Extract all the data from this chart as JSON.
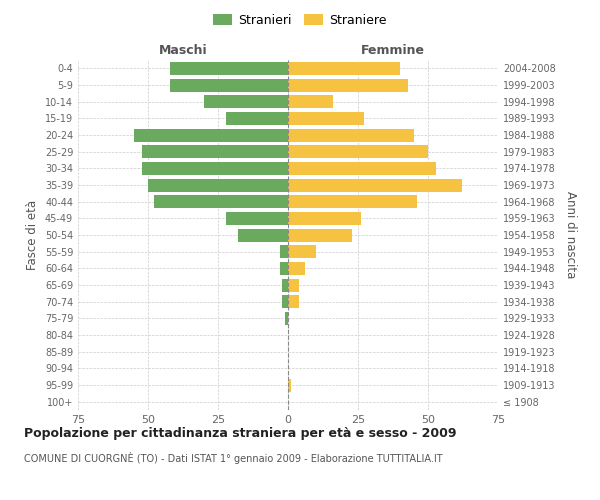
{
  "age_groups": [
    "100+",
    "95-99",
    "90-94",
    "85-89",
    "80-84",
    "75-79",
    "70-74",
    "65-69",
    "60-64",
    "55-59",
    "50-54",
    "45-49",
    "40-44",
    "35-39",
    "30-34",
    "25-29",
    "20-24",
    "15-19",
    "10-14",
    "5-9",
    "0-4"
  ],
  "birth_years": [
    "≤ 1908",
    "1909-1913",
    "1914-1918",
    "1919-1923",
    "1924-1928",
    "1929-1933",
    "1934-1938",
    "1939-1943",
    "1944-1948",
    "1949-1953",
    "1954-1958",
    "1959-1963",
    "1964-1968",
    "1969-1973",
    "1974-1978",
    "1979-1983",
    "1984-1988",
    "1989-1993",
    "1994-1998",
    "1999-2003",
    "2004-2008"
  ],
  "males": [
    0,
    0,
    0,
    0,
    0,
    1,
    2,
    2,
    3,
    3,
    18,
    22,
    48,
    50,
    52,
    52,
    55,
    22,
    30,
    42,
    42
  ],
  "females": [
    0,
    1,
    0,
    0,
    0,
    0,
    4,
    4,
    6,
    10,
    23,
    26,
    46,
    62,
    53,
    50,
    45,
    27,
    16,
    43,
    40
  ],
  "male_color": "#6aaa5f",
  "female_color": "#f5c242",
  "title": "Popolazione per cittadinanza straniera per età e sesso - 2009",
  "subtitle": "COMUNE DI CUORGNÈ (TO) - Dati ISTAT 1° gennaio 2009 - Elaborazione TUTTITALIA.IT",
  "xlabel_left": "Maschi",
  "xlabel_right": "Femmine",
  "ylabel_left": "Fasce di età",
  "ylabel_right": "Anni di nascita",
  "legend_male": "Stranieri",
  "legend_female": "Straniere",
  "xlim": 75,
  "background_color": "#ffffff",
  "grid_color": "#cccccc"
}
